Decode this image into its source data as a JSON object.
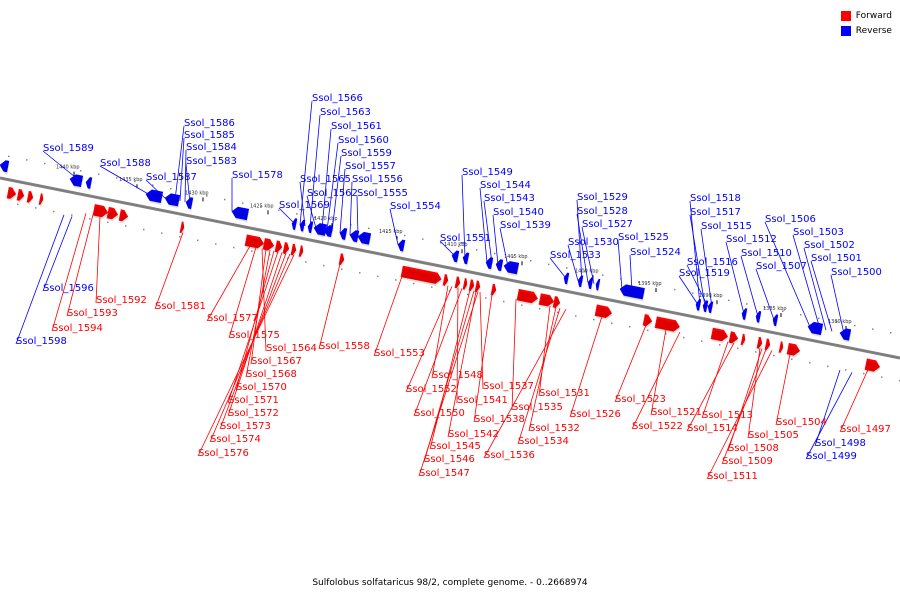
{
  "legend": {
    "forward": {
      "label": "Forward",
      "color": "#ff0000"
    },
    "reverse": {
      "label": "Reverse",
      "color": "#0000ff"
    }
  },
  "caption": "Sulfolobus solfataricus 98/2, complete genome. - 0..2668974",
  "axis": {
    "start_kbp": 1442,
    "end_kbp": 1375,
    "ticks": [
      "1440 kbp",
      "1435 kbp",
      "1430 kbp",
      "1425 kbp",
      "1420 kbp",
      "1415 kbp",
      "1410 kbp",
      "1405 kbp",
      "1400 kbp",
      "1395 kbp",
      "1390 kbp",
      "1385 kbp",
      "1380 kbp"
    ]
  },
  "colors": {
    "forward": "#ff0000",
    "reverse": "#0000ff",
    "axis": "#7f7f7f"
  },
  "reverse_labels": [
    "Ssol_1589",
    "Ssol_1588",
    "Ssol_1587",
    "Ssol_1586",
    "Ssol_1585",
    "Ssol_1584",
    "Ssol_1583",
    "Ssol_1578",
    "Ssol_1569",
    "Ssol_1566",
    "Ssol_1565",
    "Ssol_1563",
    "Ssol_1562",
    "Ssol_1561",
    "Ssol_1560",
    "Ssol_1559",
    "Ssol_1557",
    "Ssol_1556",
    "Ssol_1555",
    "Ssol_1554",
    "Ssol_1551",
    "Ssol_1549",
    "Ssol_1544",
    "Ssol_1543",
    "Ssol_1540",
    "Ssol_1539",
    "Ssol_1533",
    "Ssol_1530",
    "Ssol_1529",
    "Ssol_1528",
    "Ssol_1527",
    "Ssol_1525",
    "Ssol_1524",
    "Ssol_1519",
    "Ssol_1518",
    "Ssol_1517",
    "Ssol_1516",
    "Ssol_1515",
    "Ssol_1512",
    "Ssol_1510",
    "Ssol_1507",
    "Ssol_1506",
    "Ssol_1503",
    "Ssol_1502",
    "Ssol_1501",
    "Ssol_1500",
    "Ssol_1596",
    "Ssol_1598",
    "Ssol_1498",
    "Ssol_1499"
  ],
  "forward_labels": [
    "Ssol_1592",
    "Ssol_1593",
    "Ssol_1594",
    "Ssol_1581",
    "Ssol_1577",
    "Ssol_1575",
    "Ssol_1564",
    "Ssol_1567",
    "Ssol_1568",
    "Ssol_1570",
    "Ssol_1571",
    "Ssol_1572",
    "Ssol_1573",
    "Ssol_1574",
    "Ssol_1576",
    "Ssol_1558",
    "Ssol_1553",
    "Ssol_1548",
    "Ssol_1552",
    "Ssol_1541",
    "Ssol_1537",
    "Ssol_1550",
    "Ssol_1538",
    "Ssol_1545",
    "Ssol_1542",
    "Ssol_1535",
    "Ssol_1531",
    "Ssol_1532",
    "Ssol_1534",
    "Ssol_1536",
    "Ssol_1546",
    "Ssol_1547",
    "Ssol_1526",
    "Ssol_1523",
    "Ssol_1521",
    "Ssol_1522",
    "Ssol_1513",
    "Ssol_1514",
    "Ssol_1504",
    "Ssol_1505",
    "Ssol_1508",
    "Ssol_1509",
    "Ssol_1511",
    "Ssol_1497"
  ]
}
